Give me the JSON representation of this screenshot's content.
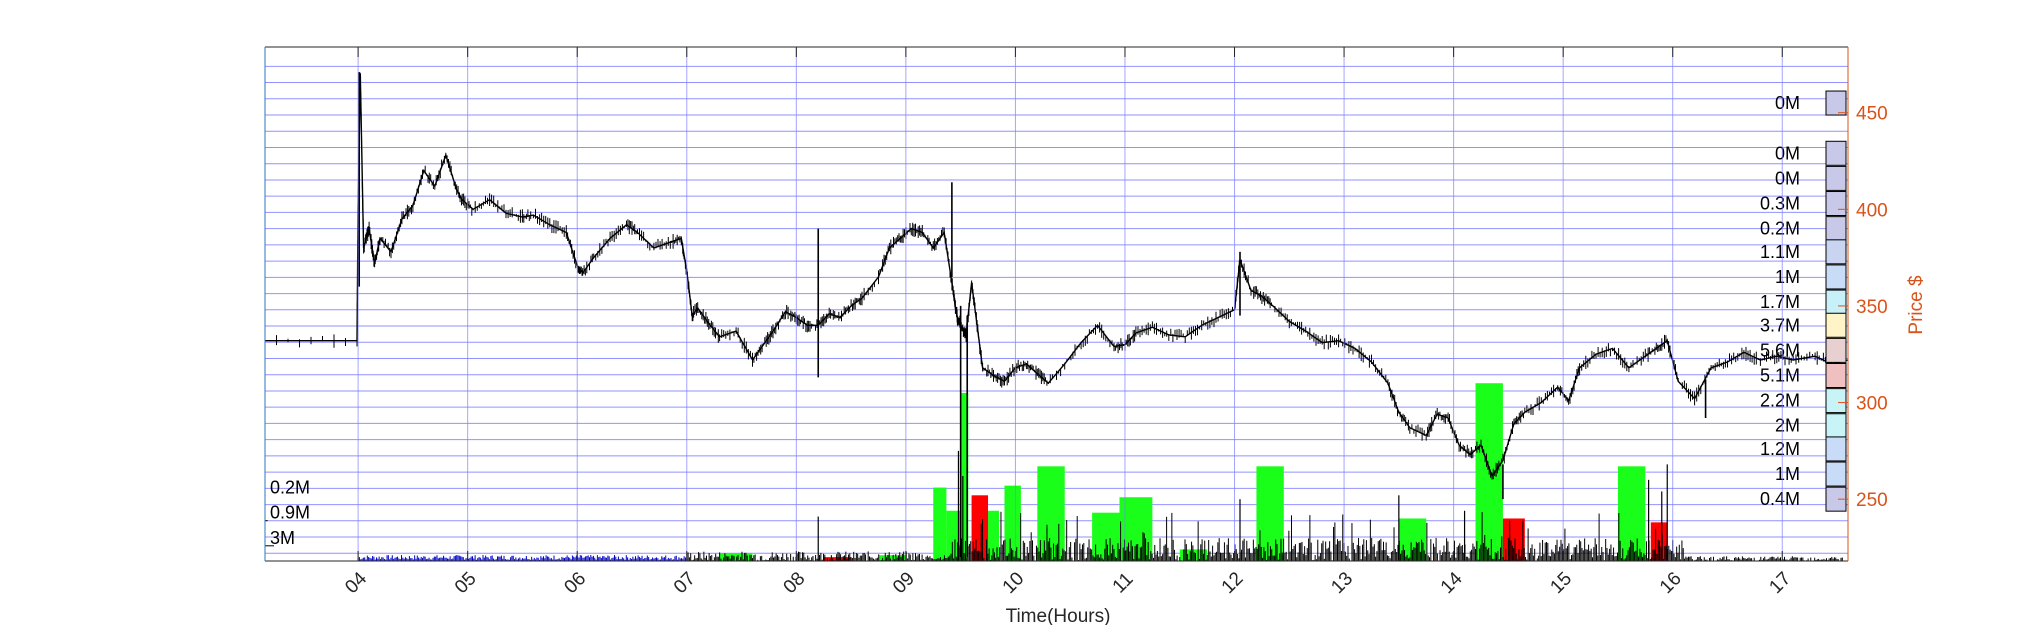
{
  "chart_data": {
    "type": "line",
    "xlabel": "Time(Hours)",
    "ylabel_right": "Price $",
    "x_range": [
      3.15,
      17.6
    ],
    "y_range": [
      218,
      484
    ],
    "x_tick_values": [
      4,
      5,
      6,
      7,
      8,
      9,
      10,
      11,
      12,
      13,
      14,
      15,
      16,
      17
    ],
    "x_tick_labels": [
      "04",
      "05",
      "06",
      "07",
      "08",
      "09",
      "10",
      "11",
      "12",
      "13",
      "14",
      "15",
      "16",
      "17"
    ],
    "y_tick_values": [
      250,
      300,
      350,
      400,
      450
    ],
    "y_tick_labels": [
      "250",
      "300",
      "350",
      "400",
      "450"
    ],
    "grid": "horizontal",
    "colors": {
      "price": "#000000",
      "right_axis": "#d95319",
      "grid": "#7f7fff",
      "volume_up": "#1aff1a",
      "volume_down": "#ff0000",
      "pre_open": "#0000cc"
    },
    "price_series": {
      "name": "Price",
      "x": [
        3.15,
        3.99,
        4.0,
        4.02,
        4.05,
        4.1,
        4.15,
        4.2,
        4.3,
        4.4,
        4.5,
        4.6,
        4.7,
        4.8,
        4.9,
        4.95,
        5.05,
        5.2,
        5.35,
        5.5,
        5.6,
        5.75,
        5.9,
        6.0,
        6.05,
        6.15,
        6.3,
        6.45,
        6.55,
        6.7,
        6.85,
        6.95,
        7.0,
        7.05,
        7.1,
        7.2,
        7.3,
        7.45,
        7.6,
        7.7,
        7.8,
        7.9,
        8.0,
        8.1,
        8.2,
        8.3,
        8.4,
        8.5,
        8.6,
        8.75,
        8.85,
        8.95,
        9.05,
        9.15,
        9.25,
        9.35,
        9.42,
        9.45,
        9.47,
        9.5,
        9.55,
        9.6,
        9.65,
        9.7,
        9.8,
        9.9,
        10.0,
        10.1,
        10.2,
        10.3,
        10.45,
        10.6,
        10.75,
        10.9,
        11.0,
        11.1,
        11.25,
        11.4,
        11.55,
        11.7,
        11.85,
        12.0,
        12.05,
        12.15,
        12.25,
        12.35,
        12.5,
        12.65,
        12.8,
        12.95,
        13.1,
        13.25,
        13.4,
        13.5,
        13.6,
        13.75,
        13.85,
        13.95,
        14.05,
        14.15,
        14.25,
        14.35,
        14.45,
        14.55,
        14.65,
        14.8,
        14.95,
        15.05,
        15.15,
        15.3,
        15.45,
        15.6,
        15.75,
        15.85,
        15.95,
        16.05,
        16.2,
        16.35,
        16.5,
        16.65,
        16.8,
        16.95,
        17.1,
        17.3,
        17.45,
        17.6
      ],
      "y": [
        332,
        332,
        400,
        470,
        380,
        390,
        372,
        385,
        378,
        395,
        402,
        420,
        412,
        428,
        410,
        405,
        400,
        405,
        398,
        396,
        397,
        392,
        388,
        371,
        367,
        375,
        385,
        392,
        388,
        380,
        383,
        385,
        368,
        345,
        349,
        341,
        334,
        337,
        322,
        330,
        338,
        347,
        344,
        340,
        340,
        346,
        344,
        350,
        354,
        365,
        380,
        385,
        390,
        388,
        380,
        388,
        362,
        350,
        344,
        340,
        335,
        362,
        340,
        318,
        314,
        311,
        318,
        320,
        315,
        310,
        320,
        331,
        340,
        329,
        330,
        336,
        339,
        335,
        334,
        340,
        344,
        348,
        374,
        358,
        355,
        350,
        342,
        337,
        331,
        332,
        328,
        321,
        310,
        295,
        287,
        283,
        294,
        292,
        278,
        273,
        278,
        262,
        270,
        289,
        295,
        300,
        308,
        301,
        318,
        325,
        328,
        318,
        324,
        328,
        332,
        311,
        302,
        318,
        321,
        326,
        322,
        324,
        322,
        324,
        320,
        322
      ]
    },
    "price_spikes": [
      {
        "x": 4.01,
        "low": 360,
        "high": 471
      },
      {
        "x": 8.2,
        "low": 313,
        "high": 390
      },
      {
        "x": 9.42,
        "low": 365,
        "high": 414
      },
      {
        "x": 9.5,
        "low": 220,
        "high": 350
      },
      {
        "x": 9.56,
        "low": 220,
        "high": 345
      },
      {
        "x": 12.05,
        "low": 345,
        "high": 378
      },
      {
        "x": 14.45,
        "low": 250,
        "high": 268
      },
      {
        "x": 16.3,
        "low": 292,
        "high": 312
      }
    ],
    "volume_profile_left": {
      "series": [
        {
          "price": 256,
          "label": "0.2M",
          "value": 0.2
        },
        {
          "price": 243,
          "label": "0.9M",
          "value": 0.9
        },
        {
          "price": 230,
          "label": "3M",
          "value": 3.0
        }
      ]
    },
    "volume_profile_right": {
      "series": [
        {
          "price": 455,
          "label": "0M",
          "value": 0.0,
          "color": "#c8c8e8"
        },
        {
          "price": 429,
          "label": "0M",
          "value": 0.0,
          "color": "#c8c8e8"
        },
        {
          "price": 416,
          "label": "0M",
          "value": 0.0,
          "color": "#c8c8e8"
        },
        {
          "price": 403,
          "label": "0.3M",
          "value": 0.3,
          "color": "#c8c8e8"
        },
        {
          "price": 390,
          "label": "0.2M",
          "value": 0.2,
          "color": "#c8c8e8"
        },
        {
          "price": 378,
          "label": "1.1M",
          "value": 1.1,
          "color": "#c8d4f0"
        },
        {
          "price": 365,
          "label": "1M",
          "value": 1.0,
          "color": "#c8dcf8"
        },
        {
          "price": 352,
          "label": "1.7M",
          "value": 1.7,
          "color": "#c8f0f8"
        },
        {
          "price": 340,
          "label": "3.7M",
          "value": 3.7,
          "color": "#fff4c8"
        },
        {
          "price": 327,
          "label": "5.6M",
          "value": 5.6,
          "color": "#e8d0d0"
        },
        {
          "price": 314,
          "label": "5.1M",
          "value": 5.1,
          "color": "#f0c0c0"
        },
        {
          "price": 301,
          "label": "2.2M",
          "value": 2.2,
          "color": "#c8f4f8"
        },
        {
          "price": 288,
          "label": "2M",
          "value": 2.0,
          "color": "#c8f4f8"
        },
        {
          "price": 276,
          "label": "1.2M",
          "value": 1.2,
          "color": "#c8dcf8"
        },
        {
          "price": 263,
          "label": "1M",
          "value": 1.0,
          "color": "#c8dcf8"
        },
        {
          "price": 250,
          "label": "0.4M",
          "value": 0.4,
          "color": "#c8c8e8"
        }
      ]
    },
    "volume_blocks_up": [
      {
        "x0": 9.25,
        "x1": 9.37,
        "top": 256
      },
      {
        "x0": 9.37,
        "x1": 9.5,
        "top": 244
      },
      {
        "x0": 9.5,
        "x1": 9.57,
        "top": 305
      },
      {
        "x0": 9.6,
        "x1": 9.72,
        "top": 250
      },
      {
        "x0": 9.75,
        "x1": 9.85,
        "top": 244
      },
      {
        "x0": 9.9,
        "x1": 10.05,
        "top": 257
      },
      {
        "x0": 10.2,
        "x1": 10.45,
        "top": 267
      },
      {
        "x0": 10.7,
        "x1": 10.95,
        "top": 243
      },
      {
        "x0": 10.95,
        "x1": 11.25,
        "top": 251
      },
      {
        "x0": 11.5,
        "x1": 11.75,
        "top": 224
      },
      {
        "x0": 12.2,
        "x1": 12.45,
        "top": 267
      },
      {
        "x0": 13.5,
        "x1": 13.75,
        "top": 240
      },
      {
        "x0": 14.2,
        "x1": 14.45,
        "top": 310
      },
      {
        "x0": 15.5,
        "x1": 15.75,
        "top": 267
      },
      {
        "x0": 7.3,
        "x1": 7.6,
        "top": 222
      },
      {
        "x0": 8.75,
        "x1": 9.0,
        "top": 221
      }
    ],
    "volume_blocks_down": [
      {
        "x0": 9.6,
        "x1": 9.75,
        "top": 252
      },
      {
        "x0": 14.45,
        "x1": 14.65,
        "top": 240
      },
      {
        "x0": 15.8,
        "x1": 15.95,
        "top": 238
      },
      {
        "x0": 8.25,
        "x1": 8.5,
        "top": 220
      }
    ]
  }
}
